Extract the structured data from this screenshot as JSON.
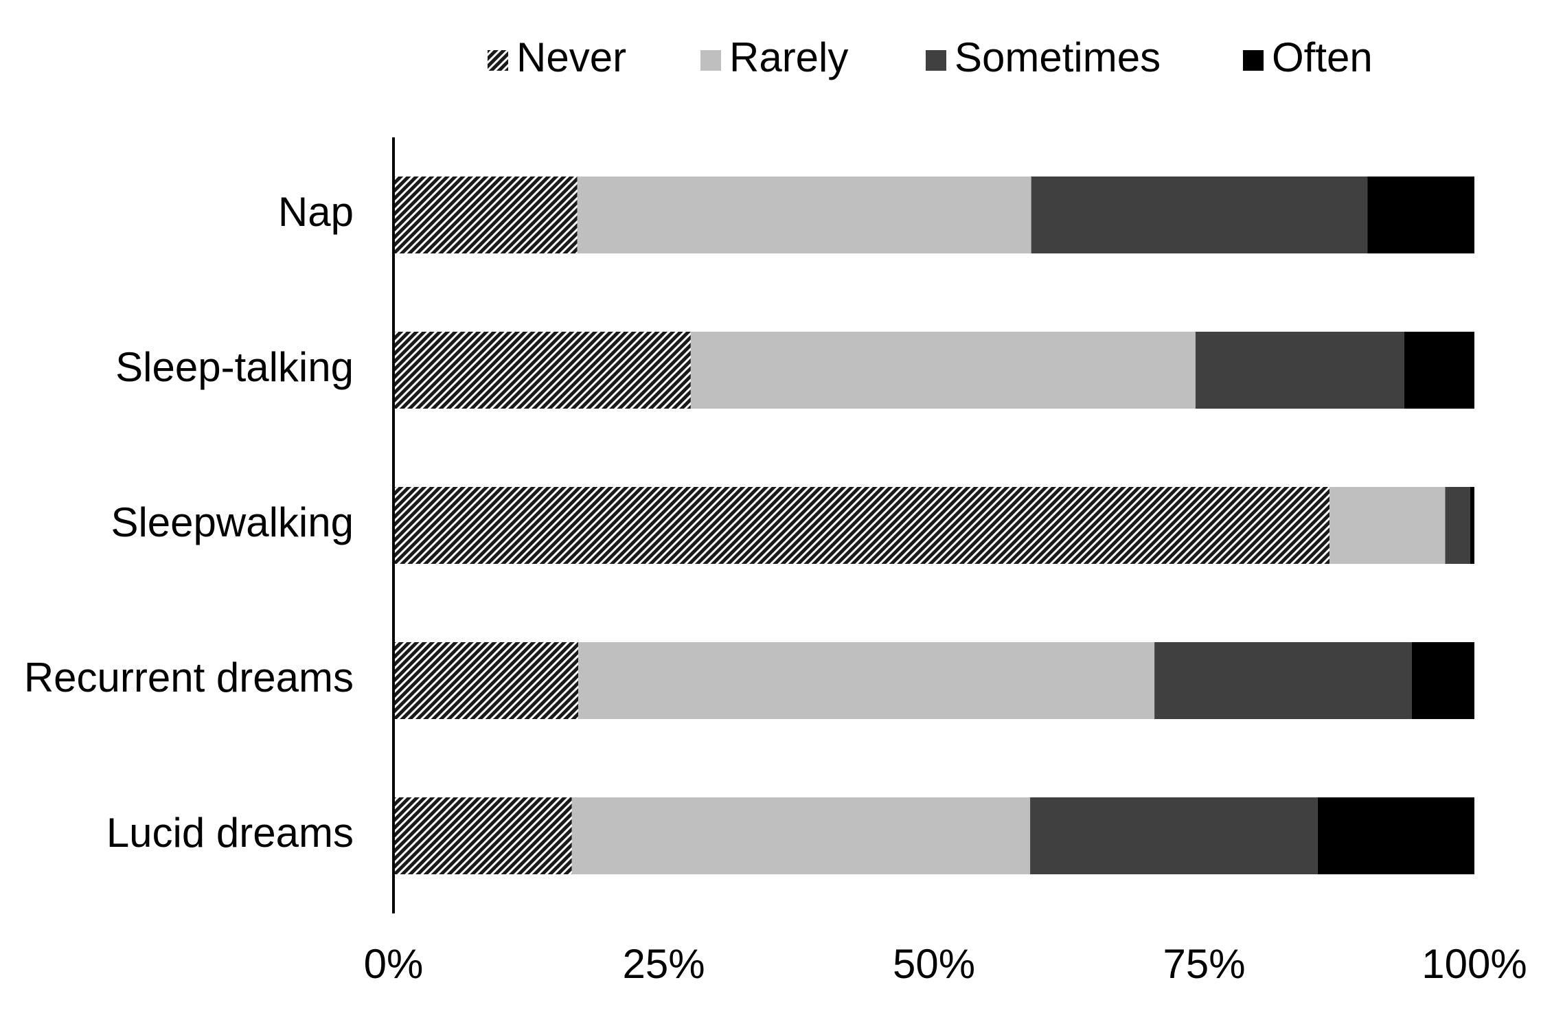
{
  "chart_data": {
    "type": "bar",
    "orientation": "horizontal",
    "stacked": true,
    "normalized": true,
    "categories": [
      "Nap",
      "Sleep-talking",
      "Sleepwalking",
      "Recurrent dreams",
      "Lucid dreams"
    ],
    "series": [
      {
        "name": "Never",
        "values": [
          17,
          27.5,
          86.6,
          17.1,
          16.5
        ],
        "color": "#3a3a3a",
        "pattern": "diagonal-hatch"
      },
      {
        "name": "Rarely",
        "values": [
          42,
          46.7,
          10.7,
          53.3,
          42.4
        ],
        "color": "#bfbfbf"
      },
      {
        "name": "Sometimes",
        "values": [
          31.1,
          19.3,
          2.3,
          23.8,
          26.6
        ],
        "color": "#404040"
      },
      {
        "name": "Often",
        "values": [
          9.9,
          6.5,
          0.4,
          5.8,
          14.5
        ],
        "color": "#000000"
      }
    ],
    "x_ticks": [
      "0%",
      "25%",
      "50%",
      "75%",
      "100%"
    ],
    "xlim": [
      0,
      100
    ],
    "title": "",
    "xlabel": "",
    "ylabel": "",
    "grid": false,
    "legend_position": "top"
  }
}
